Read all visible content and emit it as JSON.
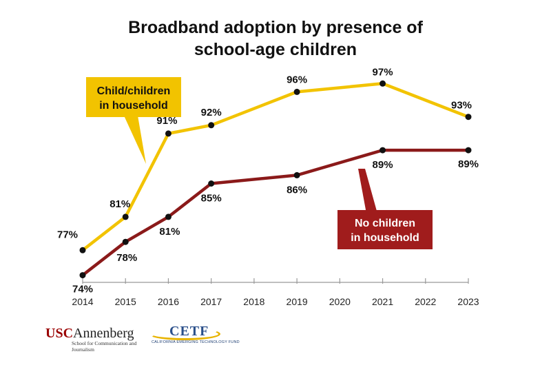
{
  "title_line1": "Broadband adoption by presence of",
  "title_line2": "school-age children",
  "colors": {
    "with_children": "#f2c300",
    "without_children": "#8b1a1a",
    "callout_with_bg": "#f2c300",
    "callout_without_bg": "#a01c1c"
  },
  "callouts": {
    "with_children": [
      "Child/children",
      "in household"
    ],
    "without_children": [
      "No children",
      "in household"
    ]
  },
  "logos": {
    "usc_red": "USC",
    "usc_name": "Annenberg",
    "usc_sub": "School for Communication and Journalism",
    "cetf_name": "CETF",
    "cetf_sub": "CALIFORNIA EMERGING TECHNOLOGY FUND"
  },
  "chart_data": {
    "type": "line",
    "title": "Broadband adoption by presence of school-age children",
    "xlabel": "",
    "ylabel": "",
    "x_ticks": [
      2014,
      2015,
      2016,
      2017,
      2018,
      2019,
      2020,
      2021,
      2022,
      2023
    ],
    "ylim": [
      70,
      100
    ],
    "grid": false,
    "series": [
      {
        "name": "Child/children in household",
        "x": [
          2014,
          2015,
          2016,
          2017,
          2019,
          2021,
          2023
        ],
        "values": [
          77,
          81,
          91,
          92,
          96,
          97,
          93
        ],
        "labels": [
          "77%",
          "81%",
          "91%",
          "92%",
          "96%",
          "97%",
          "93%"
        ]
      },
      {
        "name": "No children in household",
        "x": [
          2014,
          2015,
          2016,
          2017,
          2019,
          2021,
          2023
        ],
        "values": [
          74,
          78,
          81,
          85,
          86,
          89,
          89
        ],
        "labels": [
          "74%",
          "78%",
          "81%",
          "85%",
          "86%",
          "89%",
          "89%"
        ]
      }
    ]
  }
}
